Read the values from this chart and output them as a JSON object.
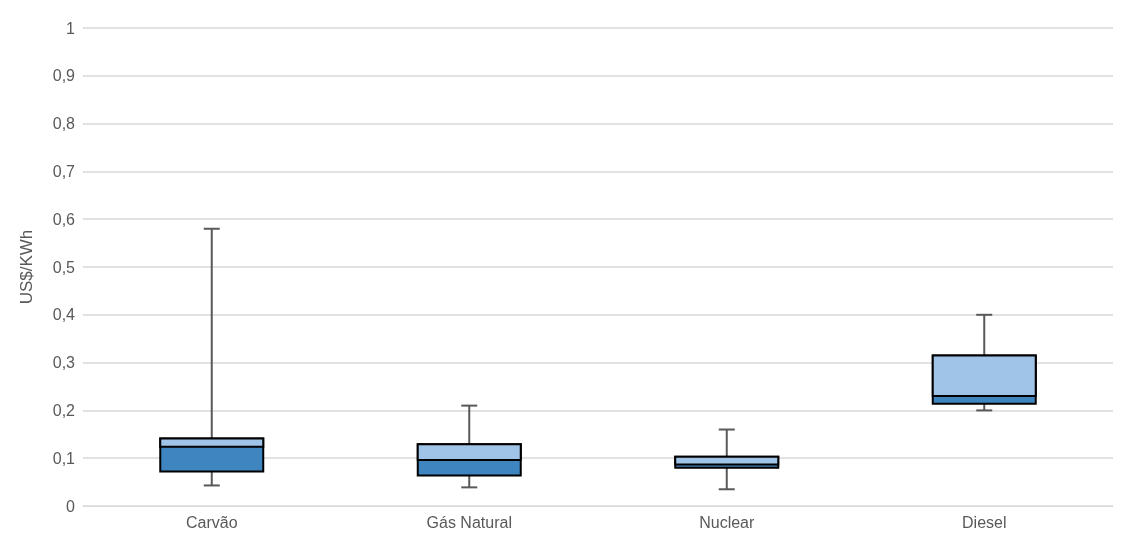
{
  "chart_data": {
    "type": "box",
    "ylabel": "US$/KWh",
    "categories": [
      "Carvão",
      "Gás Natural",
      "Nuclear",
      "Diesel"
    ],
    "boxes": [
      {
        "low": 0.043,
        "q1": 0.072,
        "median": 0.124,
        "q3": 0.141,
        "high": 0.58
      },
      {
        "low": 0.039,
        "q1": 0.064,
        "median": 0.096,
        "q3": 0.129,
        "high": 0.21
      },
      {
        "low": 0.035,
        "q1": 0.08,
        "median": 0.087,
        "q3": 0.103,
        "high": 0.16
      },
      {
        "low": 0.2,
        "q1": 0.214,
        "median": 0.23,
        "q3": 0.315,
        "high": 0.4
      }
    ],
    "color": "#a0c4e8",
    "colors": [
      "#3f85c0",
      "#3f85c0",
      "#3f85c0",
      "#3f85c0"
    ],
    "ylim": [
      0,
      1
    ],
    "yticks": [
      0,
      {
        "value": 0.1,
        "label": "0,1"
      },
      {
        "value": 0.2,
        "label": "0,2"
      },
      {
        "value": 0.3,
        "label": "0,3"
      },
      {
        "value": 0.4,
        "label": "0,4"
      },
      {
        "value": 0.5,
        "label": "0,5"
      },
      {
        "value": 0.6,
        "label": "0,6"
      },
      {
        "value": 0.7,
        "label": "0,7"
      },
      {
        "value": 0.8,
        "label": "0,8"
      },
      {
        "value": 0.9,
        "label": "0,9"
      },
      1
    ],
    "grid": "y"
  }
}
